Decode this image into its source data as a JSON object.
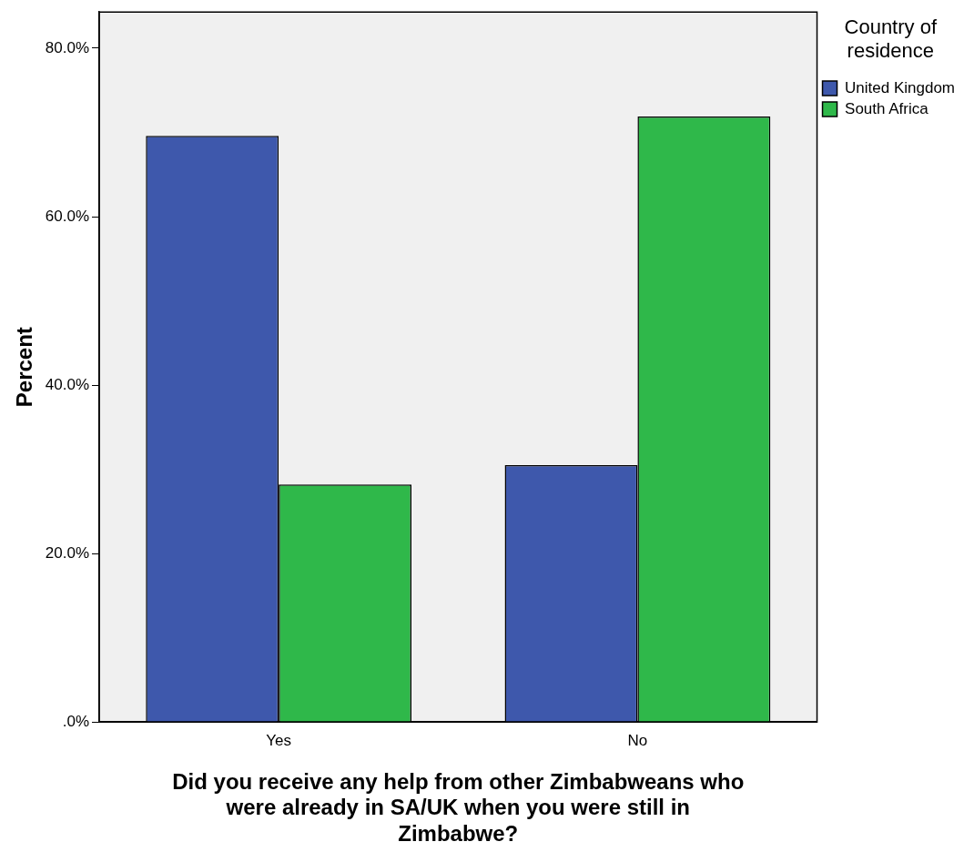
{
  "chart_data": {
    "type": "bar",
    "xlabel": "Did you receive any help from other Zimbabweans who were already in SA/UK when you were still in Zimbabwe?",
    "ylabel": "Percent",
    "legend_title": "Country of residence",
    "categories": [
      "Yes",
      "No"
    ],
    "series": [
      {
        "name": "United Kingdom",
        "color": "#3e58ac",
        "values": [
          69.6,
          30.5
        ]
      },
      {
        "name": "South Africa",
        "color": "#2fb84a",
        "values": [
          28.2,
          71.9
        ]
      }
    ],
    "ylim": [
      0,
      84.3
    ],
    "yticks": [
      {
        "value": 0,
        "label": ".0%"
      },
      {
        "value": 20,
        "label": "20.0%"
      },
      {
        "value": 40,
        "label": "40.0%"
      },
      {
        "value": 60,
        "label": "60.0%"
      },
      {
        "value": 80,
        "label": "80.0%"
      }
    ],
    "grid": false,
    "legend": "top right"
  }
}
